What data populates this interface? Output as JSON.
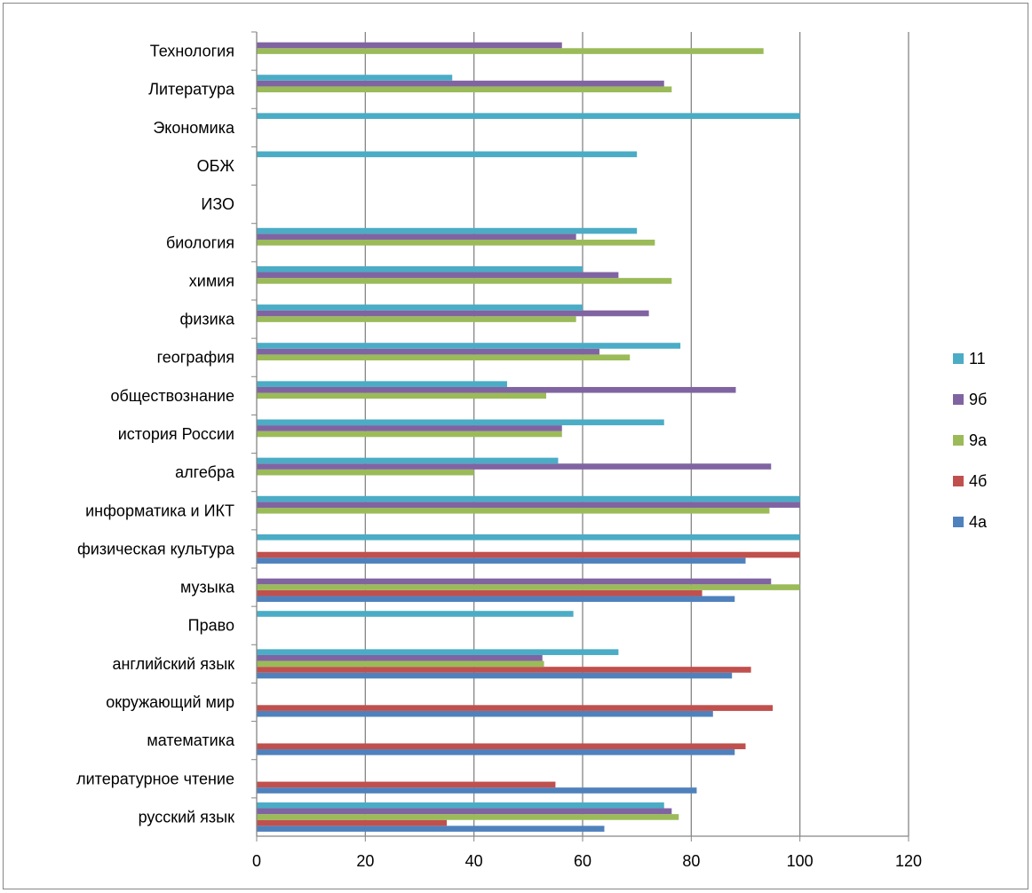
{
  "chart_data": {
    "type": "bar",
    "orientation": "horizontal",
    "title": "",
    "xlabel": "",
    "ylabel": "",
    "xlim": [
      0,
      120
    ],
    "x_ticks": [
      "0",
      "20",
      "40",
      "60",
      "80",
      "100",
      "120"
    ],
    "grid": "vertical",
    "legend_position": "right",
    "categories": [
      "русский язык",
      "литературное чтение",
      "математика",
      "окружающий мир",
      "английский язык",
      "Право",
      "музыка",
      "физическая культура",
      "информатика и ИКТ",
      "алгебра",
      "история России",
      "обществознание",
      "география",
      "физика",
      "химия",
      "биология",
      "ИЗО",
      "ОБЖ",
      "Экономика",
      "Литература",
      "Технология"
    ],
    "series": [
      {
        "name": "4а",
        "color": "#4F81BD",
        "values": [
          64,
          81,
          88,
          84,
          87.5,
          null,
          88,
          90,
          null,
          null,
          null,
          null,
          null,
          null,
          null,
          null,
          null,
          null,
          null,
          null,
          null
        ]
      },
      {
        "name": "4б",
        "color": "#C0504D",
        "values": [
          35,
          55,
          90,
          95,
          91,
          null,
          82,
          100,
          null,
          null,
          null,
          null,
          null,
          null,
          null,
          null,
          null,
          null,
          null,
          null,
          null
        ]
      },
      {
        "name": "9а",
        "color": "#9BBB59",
        "values": [
          77.7,
          null,
          null,
          null,
          52.9,
          null,
          100,
          null,
          94.4,
          40,
          56.2,
          53.3,
          68.7,
          58.8,
          76.4,
          73.3,
          null,
          null,
          null,
          76.4,
          93.3
        ]
      },
      {
        "name": "9б",
        "color": "#8064A2",
        "values": [
          76.4,
          null,
          null,
          null,
          52.6,
          null,
          94.7,
          null,
          100,
          94.7,
          56.2,
          88.2,
          63.1,
          72.2,
          66.6,
          58.8,
          null,
          null,
          null,
          75,
          56.2
        ]
      },
      {
        "name": "11",
        "color": "#4BACC6",
        "values": [
          75,
          null,
          null,
          null,
          66.6,
          58.3,
          null,
          100,
          100,
          55.5,
          75,
          46.1,
          78,
          60,
          60,
          70,
          null,
          70,
          100,
          36,
          null
        ]
      }
    ]
  }
}
